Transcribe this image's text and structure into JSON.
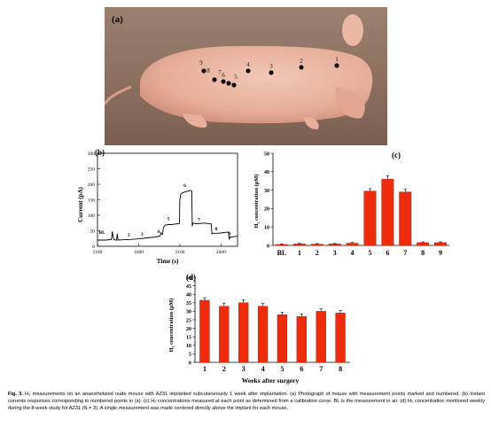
{
  "panel_a": {
    "label": "(a)",
    "points": [
      {
        "n": "1"
      },
      {
        "n": "2"
      },
      {
        "n": "3"
      },
      {
        "n": "4"
      },
      {
        "n": "5"
      },
      {
        "n": "6"
      },
      {
        "n": "7"
      },
      {
        "n": "8"
      },
      {
        "n": "9"
      }
    ]
  },
  "chart_data": [
    {
      "id": "b",
      "label": "(b)",
      "type": "line",
      "xlabel": "Time (s)",
      "ylabel": "Current (pA)",
      "xlim": [
        1100,
        2800
      ],
      "ylim": [
        0,
        300
      ],
      "xticks": [
        1100,
        1600,
        2100,
        2600
      ],
      "yticks": [
        0,
        50,
        100,
        150,
        200,
        250,
        300
      ],
      "x": [
        1100,
        1200,
        1270,
        1280,
        1290,
        1300,
        1320,
        1330,
        1340,
        1350,
        1400,
        1500,
        1600,
        1700,
        1800,
        1860,
        1870,
        1880,
        1890,
        1900,
        1920,
        1960,
        1980,
        2000,
        2050,
        2080,
        2095,
        2100,
        2110,
        2130,
        2160,
        2200,
        2230,
        2245,
        2250,
        2260,
        2280,
        2300,
        2400,
        2480,
        2490,
        2500,
        2550,
        2600,
        2650,
        2690,
        2700,
        2710,
        2730,
        2780,
        2800
      ],
      "y": [
        20,
        20,
        22,
        48,
        30,
        22,
        20,
        20,
        38,
        20,
        21,
        22,
        24,
        27,
        30,
        33,
        44,
        40,
        38,
        60,
        68,
        70,
        70,
        70,
        72,
        73,
        74,
        150,
        168,
        172,
        175,
        178,
        180,
        178,
        65,
        75,
        74,
        73,
        75,
        72,
        40,
        42,
        42,
        43,
        45,
        46,
        22,
        30,
        30,
        32,
        32
      ],
      "annotations": [
        {
          "text": "BL",
          "x": 1155,
          "y": 40
        },
        {
          "text": "1",
          "x": 1340,
          "y": 32
        },
        {
          "text": "2",
          "x": 1480,
          "y": 33
        },
        {
          "text": "3",
          "x": 1640,
          "y": 35
        },
        {
          "text": "4",
          "x": 1840,
          "y": 43
        },
        {
          "text": "5",
          "x": 1960,
          "y": 85
        },
        {
          "text": "6",
          "x": 2160,
          "y": 192
        },
        {
          "text": "7",
          "x": 2330,
          "y": 82
        },
        {
          "text": "8",
          "x": 2540,
          "y": 52
        },
        {
          "text": "9",
          "x": 2705,
          "y": 36
        }
      ]
    },
    {
      "id": "c",
      "label": "(c)",
      "type": "bar",
      "ylabel": "H₂ concentration (μM)",
      "ylim": [
        0,
        50
      ],
      "yticks": [
        0,
        10,
        20,
        30,
        40,
        50
      ],
      "categories": [
        "BL",
        "1",
        "2",
        "3",
        "4",
        "5",
        "6",
        "7",
        "8",
        "9"
      ],
      "values": [
        0.5,
        0.8,
        0.7,
        0.8,
        1.2,
        29.5,
        36,
        29,
        1.5,
        1.5
      ],
      "errors": [
        0.3,
        0.3,
        0.3,
        0.3,
        0.4,
        1.3,
        1.8,
        1.5,
        0.4,
        0.4
      ]
    },
    {
      "id": "d",
      "label": "(d)",
      "type": "bar",
      "xlabel": "Weeks after surgery",
      "ylabel": "H₂ concentration (μM)",
      "ylim": [
        0,
        50
      ],
      "yticks": [
        0,
        5,
        10,
        15,
        20,
        25,
        30,
        35,
        40,
        45,
        50
      ],
      "categories": [
        "1",
        "2",
        "3",
        "4",
        "5",
        "6",
        "7",
        "8"
      ],
      "values": [
        36.5,
        33,
        35,
        33,
        28,
        27,
        30,
        29
      ],
      "errors": [
        1.5,
        1.8,
        1.8,
        1.6,
        1.5,
        1.5,
        1.5,
        1.5
      ]
    }
  ],
  "colors": {
    "bar": "#ee2c0c",
    "bar_edge": "#a01806",
    "line": "#000000"
  },
  "caption": {
    "label": "Fig. 3.",
    "text": "H₂ measurements on an anaesthetized nude mouse with AZ31 implanted subcutaneously 1 week after implantation. (a) Photograph of mouse with measurement points marked and numbered. (b) Instant currents responses corresponding to numbered points in (a). (c) H₂ concentrations measured at each point as determined from a calibration curve. BL is the measurement in air. (d) H₂ concentration monitored weekly during the 8-week study for AZ31 (N = 3). A single measurement was made centered directly above the implant for each mouse."
  }
}
